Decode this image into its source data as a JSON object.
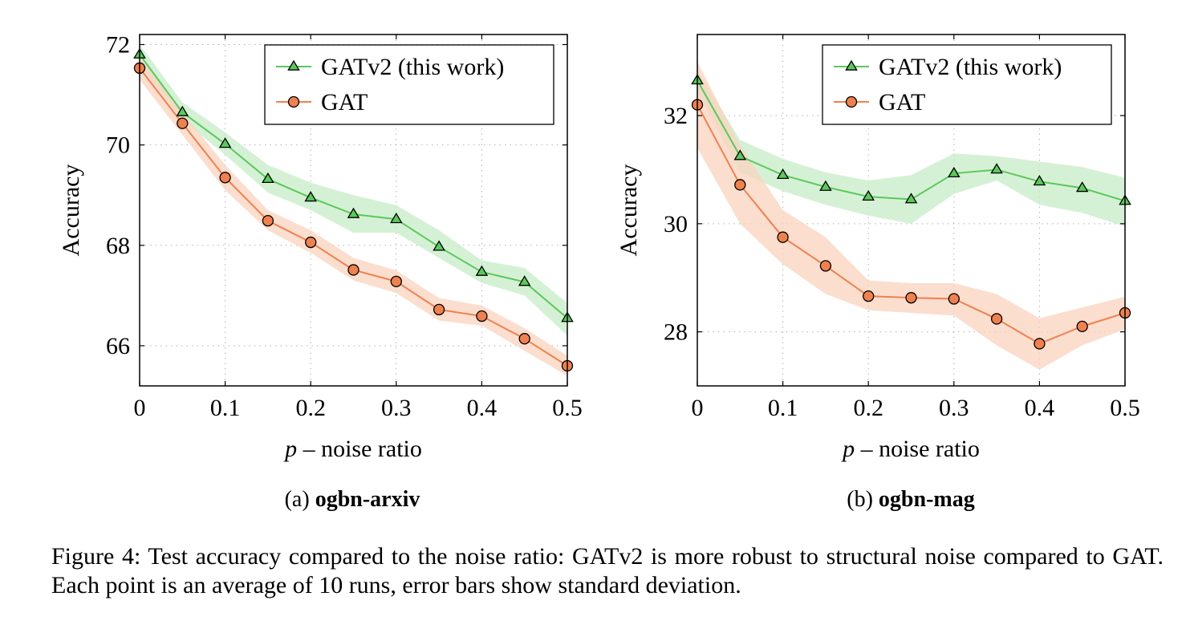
{
  "chart_data": [
    {
      "type": "line",
      "subcaption_prefix": "(a)",
      "dataset": "ogbn-arxiv",
      "xlabel_var": "p",
      "xlabel_rest": " – noise ratio",
      "ylabel": "Accuracy",
      "xlim": [
        0,
        0.5
      ],
      "ylim": [
        65.2,
        72.2
      ],
      "xticks": [
        0,
        0.1,
        0.2,
        0.3,
        0.4,
        0.5
      ],
      "xtick_labels": [
        "0",
        "0.1",
        "0.2",
        "0.3",
        "0.4",
        "0.5"
      ],
      "yticks": [
        66,
        68,
        70,
        72
      ],
      "ytick_labels": [
        "66",
        "68",
        "70",
        "72"
      ],
      "grid": true,
      "legend_position": "top-right",
      "x": [
        0,
        0.05,
        0.1,
        0.15,
        0.2,
        0.25,
        0.3,
        0.35,
        0.4,
        0.45,
        0.5
      ],
      "series": [
        {
          "name": "GATv2 (this work)",
          "marker": "triangle",
          "color": "#5cc85c",
          "fill": "#c7ecc7",
          "values": [
            71.8,
            70.65,
            70.02,
            69.32,
            68.95,
            68.62,
            68.52,
            67.97,
            67.47,
            67.27,
            66.55
          ],
          "lower": [
            71.6,
            70.5,
            69.8,
            69.05,
            68.7,
            68.25,
            68.25,
            67.75,
            67.25,
            67.0,
            66.2
          ],
          "upper": [
            72.0,
            70.85,
            70.25,
            69.6,
            69.25,
            69.0,
            68.8,
            68.3,
            67.7,
            67.55,
            66.85
          ]
        },
        {
          "name": "GAT",
          "marker": "circle",
          "color": "#ef8150",
          "fill": "#f9d3be",
          "values": [
            71.53,
            70.43,
            69.35,
            68.49,
            68.06,
            67.51,
            67.28,
            66.72,
            66.59,
            66.14,
            65.6
          ],
          "lower": [
            71.3,
            70.2,
            69.1,
            68.3,
            67.85,
            67.3,
            67.05,
            66.5,
            66.4,
            65.9,
            65.4
          ],
          "upper": [
            71.75,
            70.65,
            69.6,
            68.7,
            68.3,
            67.75,
            67.5,
            66.95,
            66.8,
            66.35,
            65.8
          ]
        }
      ]
    },
    {
      "type": "line",
      "subcaption_prefix": "(b)",
      "dataset": "ogbn-mag",
      "xlabel_var": "p",
      "xlabel_rest": " – noise ratio",
      "ylabel": "Accuracy",
      "xlim": [
        0,
        0.5
      ],
      "ylim": [
        27.0,
        33.5
      ],
      "xticks": [
        0,
        0.1,
        0.2,
        0.3,
        0.4,
        0.5
      ],
      "xtick_labels": [
        "0",
        "0.1",
        "0.2",
        "0.3",
        "0.4",
        "0.5"
      ],
      "yticks": [
        28,
        30,
        32
      ],
      "ytick_labels": [
        "28",
        "30",
        "32"
      ],
      "grid": true,
      "legend_position": "top-right",
      "x": [
        0,
        0.05,
        0.1,
        0.15,
        0.2,
        0.25,
        0.3,
        0.35,
        0.4,
        0.45,
        0.5
      ],
      "series": [
        {
          "name": "GATv2 (this work)",
          "marker": "triangle",
          "color": "#5cc85c",
          "fill": "#c7ecc7",
          "values": [
            32.65,
            31.25,
            30.9,
            30.68,
            30.5,
            30.45,
            30.93,
            31.0,
            30.78,
            30.66,
            30.42
          ],
          "lower": [
            32.45,
            30.95,
            30.6,
            30.35,
            30.15,
            30.0,
            30.55,
            30.8,
            30.35,
            30.2,
            29.95
          ],
          "upper": [
            32.85,
            31.55,
            31.2,
            30.95,
            30.8,
            30.9,
            31.3,
            31.25,
            31.15,
            31.05,
            30.85
          ]
        },
        {
          "name": "GAT",
          "marker": "circle",
          "color": "#ef8150",
          "fill": "#f9d3be",
          "values": [
            32.2,
            30.72,
            29.75,
            29.22,
            28.66,
            28.63,
            28.61,
            28.24,
            27.78,
            28.1,
            28.35
          ],
          "lower": [
            31.4,
            30.0,
            29.25,
            28.7,
            28.4,
            28.35,
            28.3,
            27.75,
            27.3,
            27.75,
            28.05
          ],
          "upper": [
            33.0,
            31.45,
            30.25,
            29.75,
            28.95,
            28.9,
            28.9,
            28.7,
            28.25,
            28.45,
            28.65
          ]
        }
      ]
    }
  ],
  "caption": "Figure 4: Test accuracy compared to the noise ratio: GATv2 is more robust to structural noise compared to GAT. Each point is an average of 10 runs, error bars show standard deviation."
}
